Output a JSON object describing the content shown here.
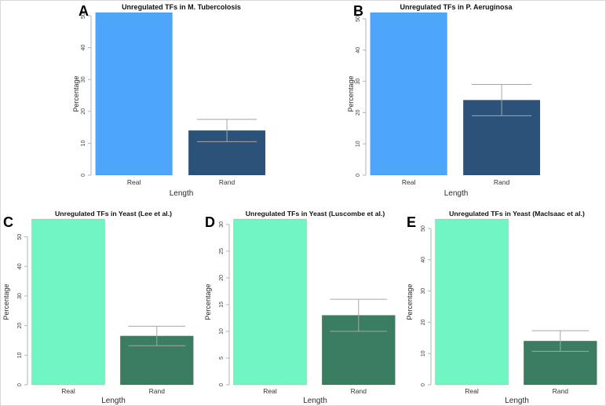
{
  "figure": {
    "background": "#ffffff",
    "border_color": "#d8d8d8",
    "panel_letters": [
      "A",
      "B",
      "C",
      "D",
      "E"
    ],
    "colors": {
      "bacteria_real": "#4da6fa",
      "bacteria_rand": "#2b5278",
      "yeast_real": "#6ff6c3",
      "yeast_rand": "#3a7d61",
      "error_bar": "#a6a6a6",
      "axis": "#b3b3b3"
    }
  },
  "chart_data": [
    {
      "label": "A",
      "type": "bar",
      "title": "Unregulated TFs in M. Tubercolosis",
      "xlabel": "Length",
      "ylabel": "Percentage",
      "categories": [
        "Real",
        "Rand"
      ],
      "values": [
        51,
        14
      ],
      "error": [
        0,
        3.5
      ],
      "error_upper": [
        null,
        17.5
      ],
      "yticks": [
        0,
        10,
        20,
        30,
        40,
        50
      ],
      "ylim": [
        0,
        51
      ],
      "grid": false,
      "legend": null,
      "bar_colors": [
        "#4da6fa",
        "#2b5278"
      ],
      "error_color": "#a6a6a6"
    },
    {
      "label": "B",
      "type": "bar",
      "title": "Unregulated TFs in P. Aeruginosa",
      "xlabel": "Length",
      "ylabel": "Percentage",
      "categories": [
        "Real",
        "Rand"
      ],
      "values": [
        52,
        24
      ],
      "error": [
        0,
        5
      ],
      "error_upper": [
        null,
        29
      ],
      "yticks": [
        0,
        10,
        20,
        30,
        40,
        50
      ],
      "ylim": [
        0,
        52
      ],
      "grid": false,
      "legend": null,
      "bar_colors": [
        "#4da6fa",
        "#2b5278"
      ],
      "error_color": "#a6a6a6"
    },
    {
      "label": "C",
      "type": "bar",
      "title": "Unregulated TFs in Yeast (Lee et al.)",
      "xlabel": "Length",
      "ylabel": "Percentage",
      "categories": [
        "Real",
        "Rand"
      ],
      "values": [
        56,
        16.5
      ],
      "error": [
        0,
        3.3
      ],
      "error_upper": [
        null,
        19.8
      ],
      "yticks": [
        0,
        10,
        20,
        30,
        40,
        50
      ],
      "ylim": [
        0,
        56
      ],
      "grid": false,
      "legend": null,
      "bar_colors": [
        "#6ff6c3",
        "#3a7d61"
      ],
      "error_color": "#a6a6a6"
    },
    {
      "label": "D",
      "type": "bar",
      "title": "Unregulated TFs in Yeast (Luscombe et al.)",
      "xlabel": "Length",
      "ylabel": "Percentage",
      "categories": [
        "Real",
        "Rand"
      ],
      "values": [
        31,
        13
      ],
      "error": [
        0,
        3
      ],
      "error_upper": [
        null,
        16
      ],
      "yticks": [
        0,
        5,
        10,
        15,
        20,
        25,
        30
      ],
      "ylim": [
        0,
        31
      ],
      "grid": false,
      "legend": null,
      "bar_colors": [
        "#6ff6c3",
        "#3a7d61"
      ],
      "error_color": "#a6a6a6"
    },
    {
      "label": "E",
      "type": "bar",
      "title": "Unregulated TFs in Yeast (MacIsaac et al.)",
      "xlabel": "Length",
      "ylabel": "Percentage",
      "categories": [
        "Real",
        "Rand"
      ],
      "values": [
        53,
        14
      ],
      "error": [
        0,
        3.3
      ],
      "error_upper": [
        null,
        17.3
      ],
      "yticks": [
        0,
        10,
        20,
        30,
        40,
        50
      ],
      "ylim": [
        0,
        53
      ],
      "grid": false,
      "legend": null,
      "bar_colors": [
        "#6ff6c3",
        "#3a7d61"
      ],
      "error_color": "#a6a6a6"
    }
  ]
}
